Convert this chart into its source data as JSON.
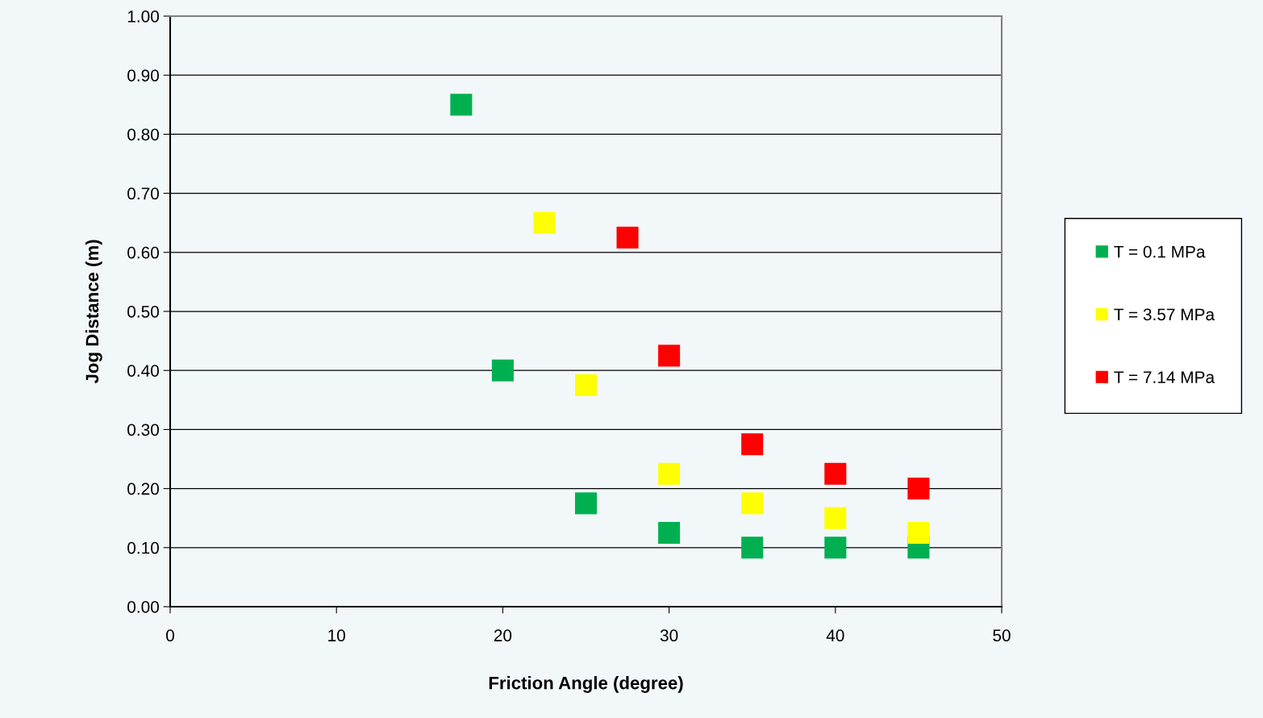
{
  "chart_data": {
    "type": "scatter",
    "xlabel": "Friction Angle (degree)",
    "ylabel": "Jog Distance (m)",
    "xlim": [
      0,
      50
    ],
    "xticks": [
      0,
      10,
      20,
      30,
      40,
      50
    ],
    "ylim": [
      0,
      1
    ],
    "yticks": [
      {
        "value": 0,
        "label": "0.00"
      },
      {
        "value": 0.1,
        "label": "0.10"
      },
      {
        "value": 0.2,
        "label": "0.20"
      },
      {
        "value": 0.3,
        "label": "0.30"
      },
      {
        "value": 0.4,
        "label": "0.40"
      },
      {
        "value": 0.5,
        "label": "0.50"
      },
      {
        "value": 0.6,
        "label": "0.60"
      },
      {
        "value": 0.7,
        "label": "0.70"
      },
      {
        "value": 0.8,
        "label": "0.80"
      },
      {
        "value": 0.9,
        "label": "0.90"
      },
      {
        "value": 1,
        "label": "1.00"
      }
    ],
    "grid": "y",
    "legend": "right",
    "marker": "square",
    "series": [
      {
        "name": "T = 0.1 MPa",
        "color": "#00b050",
        "x": [
          17.5,
          20,
          25,
          30,
          35,
          40,
          45
        ],
        "values": [
          0.85,
          0.4,
          0.175,
          0.125,
          0.1,
          0.1,
          0.1
        ]
      },
      {
        "name": "T = 3.57 MPa",
        "color": "#ffff00",
        "x": [
          22.5,
          25,
          30,
          35,
          40,
          45
        ],
        "values": [
          0.65,
          0.375,
          0.225,
          0.175,
          0.15,
          0.125
        ]
      },
      {
        "name": "T = 7.14 MPa",
        "color": "#ff0000",
        "x": [
          27.5,
          30,
          35,
          40,
          45
        ],
        "values": [
          0.625,
          0.425,
          0.275,
          0.225,
          0.2
        ]
      }
    ]
  }
}
